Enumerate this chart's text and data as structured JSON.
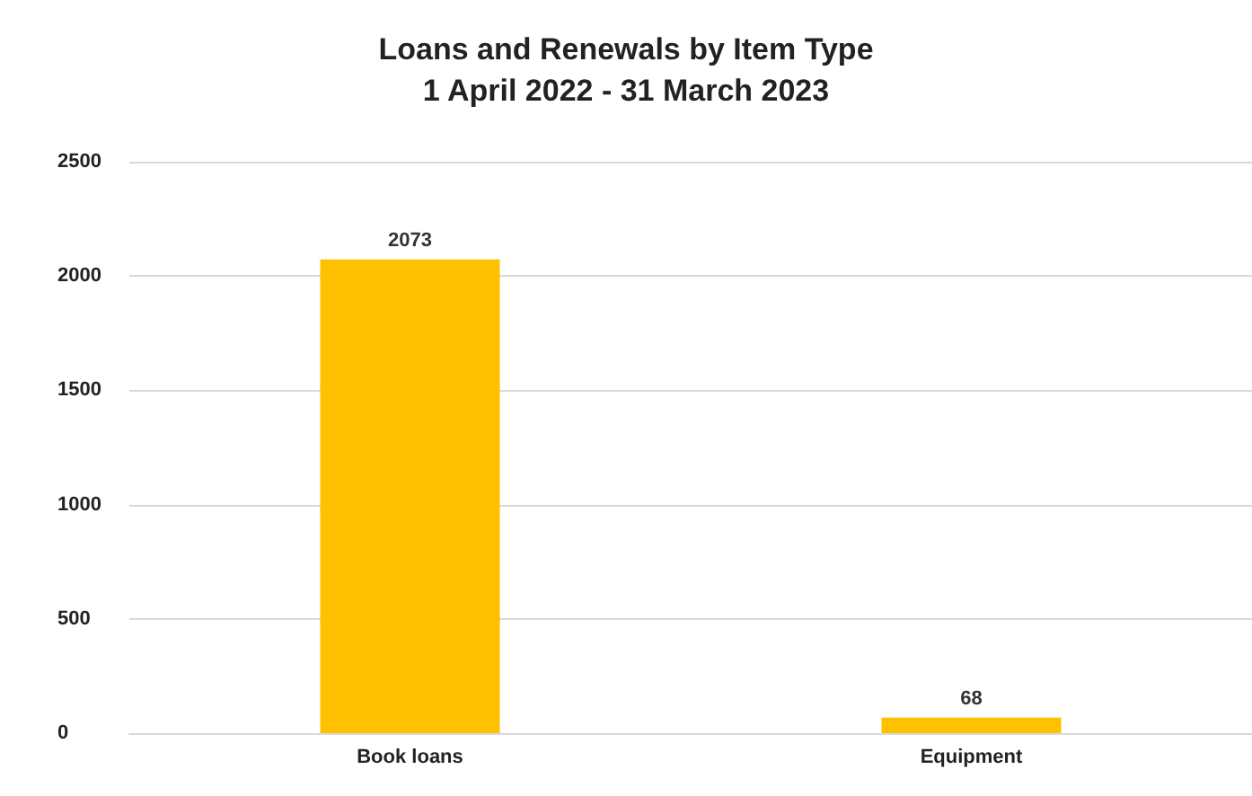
{
  "chart_data": {
    "type": "bar",
    "title": "Loans and Renewals by Item Type",
    "subtitle": "1 April 2022 - 31 March 2023",
    "categories": [
      "Book loans",
      "Equipment"
    ],
    "values": [
      2073,
      68
    ],
    "color": "#ffc000",
    "ylim": [
      0,
      2500
    ],
    "yticks": [
      0,
      500,
      1000,
      1500,
      2000,
      2500
    ],
    "grid": "y",
    "data_labels": true
  }
}
